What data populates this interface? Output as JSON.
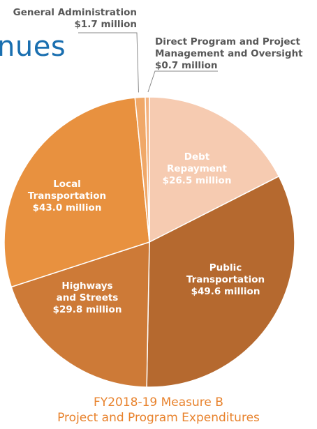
{
  "header": {
    "title_fragment": "nues"
  },
  "chart_data": {
    "type": "pie",
    "title": [
      "FY2018-19 Measure B",
      "Project and Program Expenditures"
    ],
    "unit": "million",
    "slices": [
      {
        "label": [
          "Debt",
          "Repayment"
        ],
        "value": 26.5,
        "value_text": "$26.5 million",
        "color": "#f6cbb1"
      },
      {
        "label": [
          "Public",
          "Transportation"
        ],
        "value": 49.6,
        "value_text": "$49.6 million",
        "color": "#b5692f"
      },
      {
        "label": [
          "Highways",
          "and Streets"
        ],
        "value": 29.8,
        "value_text": "$29.8 million",
        "color": "#cd7a37"
      },
      {
        "label": [
          "Local",
          "Transportation"
        ],
        "value": 43.0,
        "value_text": "$43.0 million",
        "color": "#e8913f"
      },
      {
        "label": [
          "General Administration"
        ],
        "value": 1.7,
        "value_text": "$1.7 million",
        "color": "#f0a868"
      },
      {
        "label": [
          "Direct Program and Project",
          "Management and Oversight"
        ],
        "value": 0.7,
        "value_text": "$0.7 million",
        "color": "#f3b27f"
      }
    ]
  }
}
